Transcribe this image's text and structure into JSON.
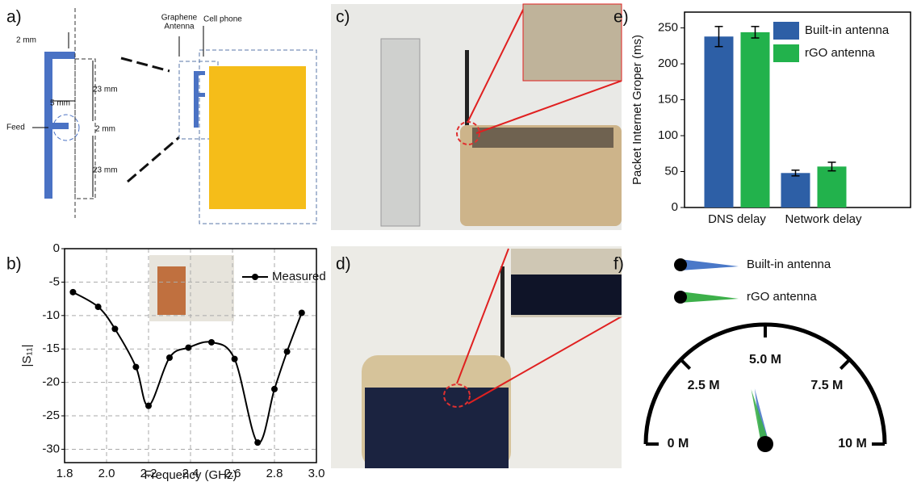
{
  "panel_labels": [
    "a)",
    "b)",
    "c)",
    "d)",
    "e)",
    "f)"
  ],
  "diagram": {
    "labels": [
      "2 mm",
      "5 mm",
      "Feed",
      "2 mm",
      "23 mm",
      "23 mm",
      "Cell phone"
    ],
    "antenna_label": [
      "Graphene",
      "Antenna"
    ]
  },
  "chart_data": [
    {
      "type": "line",
      "x": [
        1.84,
        1.96,
        2.04,
        2.14,
        2.2,
        2.3,
        2.39,
        2.5,
        2.61,
        2.72,
        2.8,
        2.86,
        2.93
      ],
      "series": [
        {
          "name": "Measured",
          "color": "#000000",
          "values": [
            -6.5,
            -8.7,
            -12.0,
            -17.7,
            -23.5,
            -16.3,
            -14.8,
            -14.0,
            -16.5,
            -29.0,
            -21.0,
            -15.4,
            -9.6
          ]
        }
      ],
      "xlabel": "Frequency (GHz)",
      "ylabel": "|S₁₁|",
      "xlim": [
        1.8,
        3.0
      ],
      "ylim": [
        -32,
        0
      ],
      "xticks": [
        1.8,
        {
          "value": 2,
          "label": "2.0"
        },
        2.2,
        2.4,
        2.6,
        2.8,
        {
          "value": 3,
          "label": "3.0"
        }
      ],
      "yticks": [
        0,
        -5,
        -10,
        -15,
        -20,
        -25,
        -30
      ],
      "grid": true,
      "legend": "upper right"
    },
    {
      "type": "bar",
      "categories": [
        "DNS delay",
        "Network delay"
      ],
      "series": [
        {
          "name": "Built-in antenna",
          "color": "#2d5fa6",
          "values": [
            238,
            48
          ],
          "errors": [
            14,
            4
          ]
        },
        {
          "name": "rGO antenna",
          "color": "#22b24c",
          "values": [
            244,
            57
          ],
          "errors": [
            8,
            6
          ]
        }
      ],
      "ylabel": "Packet Internet Groper (ms)",
      "ylim": [
        0,
        272
      ],
      "yticks": [
        0,
        50,
        100,
        150,
        200,
        250
      ],
      "legend": "upper right"
    },
    {
      "type": "gauge",
      "lim": [
        0,
        10
      ],
      "ticks": [
        {
          "value": 0,
          "label": "0 M"
        },
        {
          "value": 2.5,
          "label": "2.5 M"
        },
        {
          "value": 5,
          "label": "5.0 M"
        },
        {
          "value": 7.5,
          "label": "7.5 M"
        },
        {
          "value": 10,
          "label": "10 M"
        }
      ],
      "series": [
        {
          "name": "Built-in antenna",
          "color": "#4a78c8",
          "value": 4.4
        },
        {
          "name": "rGO antenna",
          "color": "#3db04a",
          "value": 4.2
        }
      ]
    }
  ]
}
